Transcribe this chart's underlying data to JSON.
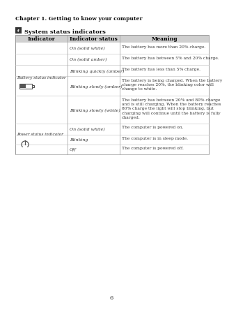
{
  "page_title": "Chapter 1. Getting to know your computer",
  "section_title": "System status indicators",
  "page_number": "6",
  "bg_color": "#ffffff",
  "header_bg": "#cccccc",
  "border_color": "#999999",
  "row_line_color": "#cccccc",
  "header_font_color": "#000000",
  "body_font_color": "#333333",
  "headers": [
    "Indicator",
    "Indicator status",
    "Meaning"
  ],
  "col_splits": [
    0.27,
    0.54
  ],
  "rows": [
    {
      "group": "battery",
      "indicator_status": "On (solid white)",
      "meaning": "The battery has more than 20% charge."
    },
    {
      "group": "battery",
      "indicator_status": "On (solid amber)",
      "meaning": "The battery has between 5% and 20% charge."
    },
    {
      "group": "battery",
      "indicator_status": "Blinking quickly (amber)",
      "meaning": "The battery has less than 5% charge."
    },
    {
      "group": "battery",
      "indicator_status": "Blinking slowly (amber)",
      "meaning": "The battery is being charged. When the battery\ncharge reaches 20%, the blinking color will\nchange to white."
    },
    {
      "group": "battery",
      "indicator_status": "Blinking slowly (white)",
      "meaning": "The battery has between 20% and 80% charge\nand is still charging. When the battery reaches\n80% charge the light will stop blinking, but\ncharging will continue until the battery is fully\ncharged."
    },
    {
      "group": "power",
      "indicator_status": "On (solid white)",
      "meaning": "The computer is powered on."
    },
    {
      "group": "power",
      "indicator_status": "Blinking",
      "meaning": "The computer is in sleep mode."
    },
    {
      "group": "power",
      "indicator_status": "Off",
      "meaning": "The computer is powered off."
    }
  ],
  "battery_label": "Battery status indicator",
  "power_label": "Power status indicator"
}
